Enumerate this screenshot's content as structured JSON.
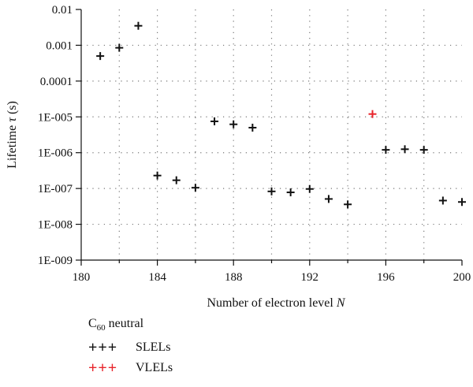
{
  "chart_data": {
    "type": "scatter",
    "xlabel_prefix": "Number of electron level ",
    "xlabel_var": "N",
    "ylabel_prefix": "Lifetime ",
    "ylabel_var": "τ",
    "ylabel_suffix": " (s)",
    "xlim": [
      180,
      200
    ],
    "x_ticks": [
      180,
      184,
      188,
      192,
      196,
      200
    ],
    "y_scale": "log",
    "ylim": [
      1e-09,
      0.01
    ],
    "y_ticks": [
      {
        "value": 0.01,
        "label": "0.01"
      },
      {
        "value": 0.001,
        "label": "0.001"
      },
      {
        "value": 0.0001,
        "label": "0.0001"
      },
      {
        "value": 1e-05,
        "label": "1E-005"
      },
      {
        "value": 1e-06,
        "label": "1E-006"
      },
      {
        "value": 1e-07,
        "label": "1E-007"
      },
      {
        "value": 1e-08,
        "label": "1E-008"
      },
      {
        "value": 1e-09,
        "label": "1E-009"
      }
    ],
    "grid": true,
    "series": [
      {
        "name": "SLELs",
        "color": "#111111",
        "points": [
          [
            181,
            0.0005
          ],
          [
            182,
            0.00085
          ],
          [
            183,
            0.0035
          ],
          [
            184,
            2.3e-07
          ],
          [
            185,
            1.7e-07
          ],
          [
            186,
            1.05e-07
          ],
          [
            187,
            7.5e-06
          ],
          [
            188,
            6.2e-06
          ],
          [
            189,
            5e-06
          ],
          [
            190,
            8.3e-08
          ],
          [
            191,
            7.8e-08
          ],
          [
            192,
            9.7e-08
          ],
          [
            193,
            5.1e-08
          ],
          [
            194,
            3.6e-08
          ],
          [
            196,
            1.2e-06
          ],
          [
            197,
            1.25e-06
          ],
          [
            198,
            1.2e-06
          ],
          [
            199,
            4.6e-08
          ],
          [
            200,
            4.2e-08
          ]
        ]
      },
      {
        "name": "VLELs",
        "color": "#e8242b",
        "points": [
          [
            195.3,
            1.2e-05
          ]
        ]
      }
    ]
  },
  "legend": {
    "title_base": "C",
    "title_sub": "60",
    "title_rest": " neutral",
    "items": [
      {
        "label": "SLELs",
        "marker": "+++",
        "color": "#111111"
      },
      {
        "label": "VLELs",
        "marker": "+++",
        "color": "#e8242b"
      }
    ]
  }
}
